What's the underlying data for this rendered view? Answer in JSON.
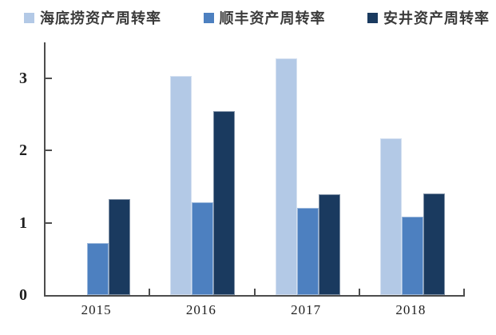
{
  "chart_data": {
    "type": "bar",
    "title": "",
    "xlabel": "",
    "ylabel": "",
    "categories": [
      "2015",
      "2016",
      "2017",
      "2018"
    ],
    "series": [
      {
        "name": "海底捞资产周转率",
        "color": "#b3c9e6",
        "values": [
          null,
          3.03,
          3.28,
          2.17
        ]
      },
      {
        "name": "顺丰资产周转率",
        "color": "#4d80c0",
        "values": [
          0.72,
          1.29,
          1.21,
          1.09
        ]
      },
      {
        "name": "安井资产周转率",
        "color": "#1a3a5f",
        "values": [
          1.33,
          2.55,
          1.4,
          1.41
        ]
      }
    ],
    "ylim": [
      0,
      3.5
    ],
    "yticks": [
      0,
      1,
      2,
      3
    ],
    "grid": false,
    "legend_position": "top"
  },
  "colors": {
    "axis": "#4d4d4d",
    "tick_text": "#1f1f1f",
    "legend_text": "#3b3b3b",
    "background": "#ffffff"
  }
}
